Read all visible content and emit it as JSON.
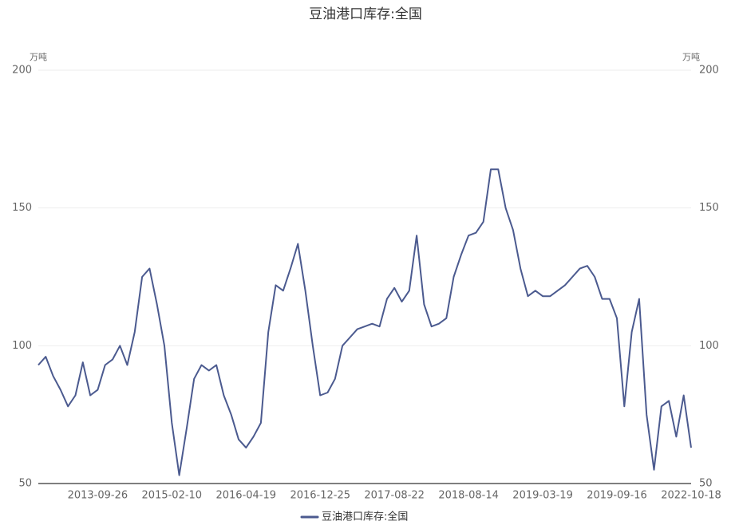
{
  "chart_data": {
    "type": "line",
    "title": "豆油港口库存:全国",
    "y_unit": "万吨",
    "y2_unit": "万吨",
    "categories": [
      null,
      null,
      null,
      null,
      null,
      null,
      null,
      null,
      "2013-09-26",
      null,
      null,
      null,
      null,
      null,
      null,
      null,
      null,
      null,
      "2015-02-10",
      null,
      null,
      null,
      null,
      null,
      null,
      null,
      null,
      null,
      "2016-04-19",
      null,
      null,
      null,
      null,
      null,
      null,
      null,
      null,
      null,
      "2016-12-25",
      null,
      null,
      null,
      null,
      null,
      null,
      null,
      null,
      null,
      "2017-08-22",
      null,
      null,
      null,
      null,
      null,
      null,
      null,
      null,
      null,
      "2018-08-14",
      null,
      null,
      null,
      null,
      null,
      null,
      null,
      null,
      null,
      "2019-03-19",
      null,
      null,
      null,
      null,
      null,
      null,
      null,
      null,
      null,
      "2019-09-16",
      null,
      null,
      null,
      null,
      null,
      null,
      null,
      null,
      null,
      "2022-10-18"
    ],
    "series": [
      {
        "name": "豆油港口库存:全国",
        "color": "#4b5a8f",
        "values": [
          93,
          96,
          89,
          84,
          78,
          82,
          94,
          82,
          84,
          93,
          95,
          100,
          93,
          105,
          125,
          128,
          115,
          100,
          72,
          53,
          70,
          88,
          93,
          91,
          93,
          82,
          75,
          66,
          63,
          67,
          72,
          105,
          122,
          120,
          128,
          137,
          120,
          100,
          82,
          83,
          88,
          100,
          103,
          106,
          107,
          108,
          107,
          117,
          121,
          116,
          120,
          140,
          115,
          107,
          108,
          110,
          125,
          133,
          140,
          141,
          145,
          164,
          164,
          150,
          142,
          128,
          118,
          120,
          118,
          118,
          120,
          122,
          125,
          128,
          129,
          125,
          117,
          117,
          110,
          78,
          105,
          117,
          75,
          55,
          78,
          80,
          67,
          82,
          63
        ]
      }
    ],
    "ylim": [
      50,
      200
    ],
    "yticks": [
      50,
      100,
      150,
      200
    ],
    "y2lim": [
      50,
      200
    ],
    "y2ticks": [
      50,
      100,
      150,
      200
    ],
    "grid": true
  }
}
